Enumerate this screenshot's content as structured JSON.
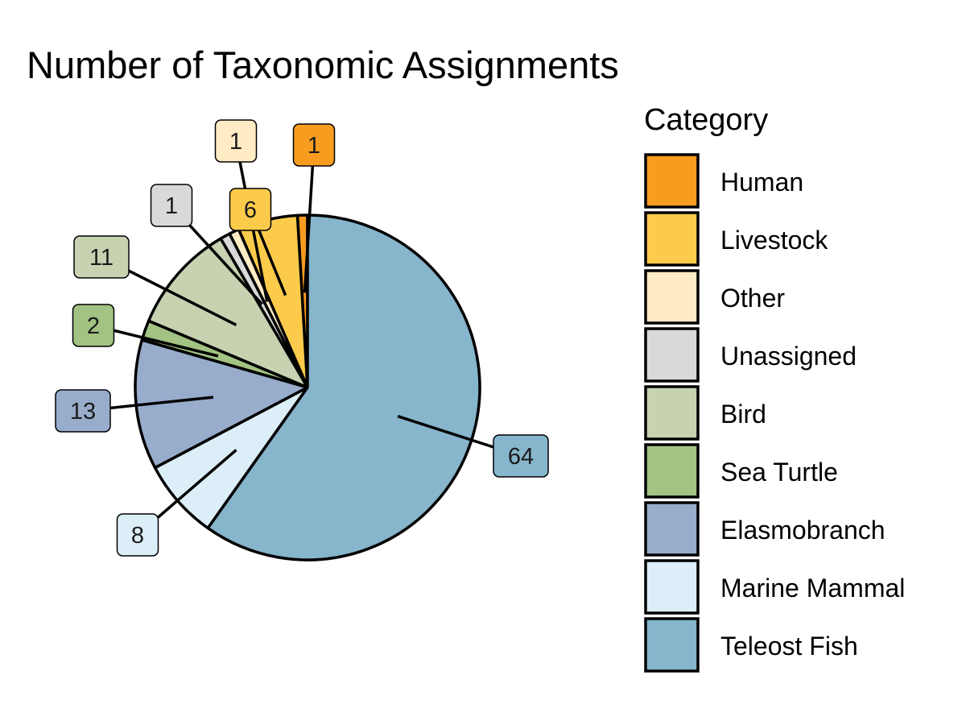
{
  "chart_data": {
    "type": "pie",
    "title": "Number of Taxonomic Assignments",
    "legend_title": "Category",
    "legend_position": "right",
    "slices": [
      {
        "label": "Human",
        "value": 1,
        "color": "#F89C20"
      },
      {
        "label": "Livestock",
        "value": 6,
        "color": "#FDCB4B"
      },
      {
        "label": "Other",
        "value": 1,
        "color": "#FFEBC4"
      },
      {
        "label": "Unassigned",
        "value": 1,
        "color": "#D9D9D9"
      },
      {
        "label": "Bird",
        "value": 11,
        "color": "#C7D2B1"
      },
      {
        "label": "Sea Turtle",
        "value": 2,
        "color": "#A2C383"
      },
      {
        "label": "Elasmobranch",
        "value": 13,
        "color": "#98ADCC"
      },
      {
        "label": "Marine Mammal",
        "value": 8,
        "color": "#DCEEF8"
      },
      {
        "label": "Teleost Fish",
        "value": 64,
        "color": "#86B5CC"
      }
    ]
  }
}
